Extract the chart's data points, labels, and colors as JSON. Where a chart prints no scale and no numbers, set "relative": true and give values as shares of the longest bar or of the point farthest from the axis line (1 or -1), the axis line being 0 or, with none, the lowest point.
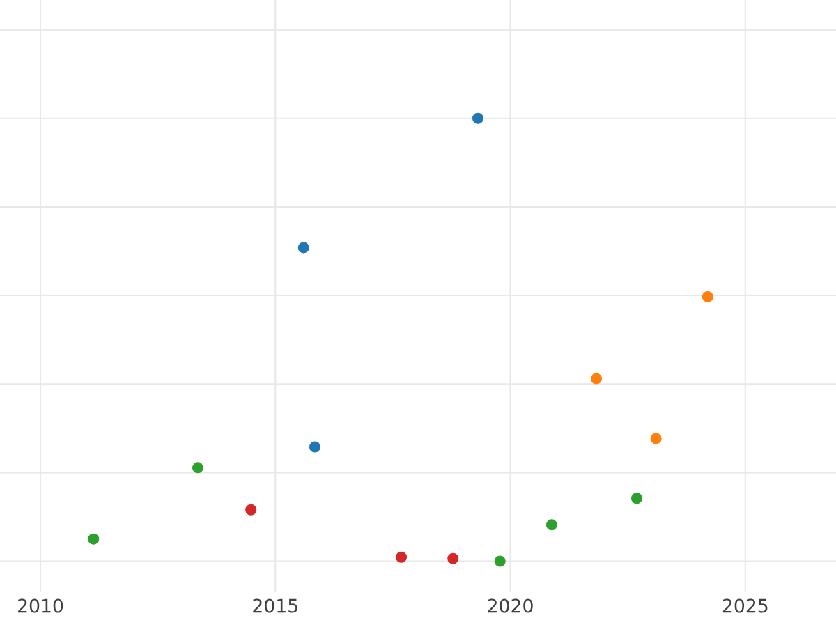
{
  "chart_data": {
    "type": "scatter",
    "relative": true,
    "grid": true,
    "xlim": [
      2009.14,
      2026.93
    ],
    "xticks": [
      2010,
      2015,
      2020,
      2025
    ],
    "series": [
      {
        "color": "#1f77b4",
        "x": [
          2019.31,
          2015.6,
          2015.84
        ],
        "values": [
          1.0,
          0.708,
          0.258
        ]
      },
      {
        "color": "#ff7f0e",
        "x": [
          2024.2,
          2021.83,
          2023.1
        ],
        "values": [
          0.597,
          0.412,
          0.277
        ]
      },
      {
        "color": "#2ca02c",
        "x": [
          2011.13,
          2013.35,
          2019.78,
          2020.88,
          2022.69
        ],
        "values": [
          0.05,
          0.211,
          0.0,
          0.082,
          0.142
        ]
      },
      {
        "color": "#d62728",
        "x": [
          2014.48,
          2017.68,
          2018.78
        ],
        "values": [
          0.116,
          0.009,
          0.006
        ]
      }
    ]
  }
}
